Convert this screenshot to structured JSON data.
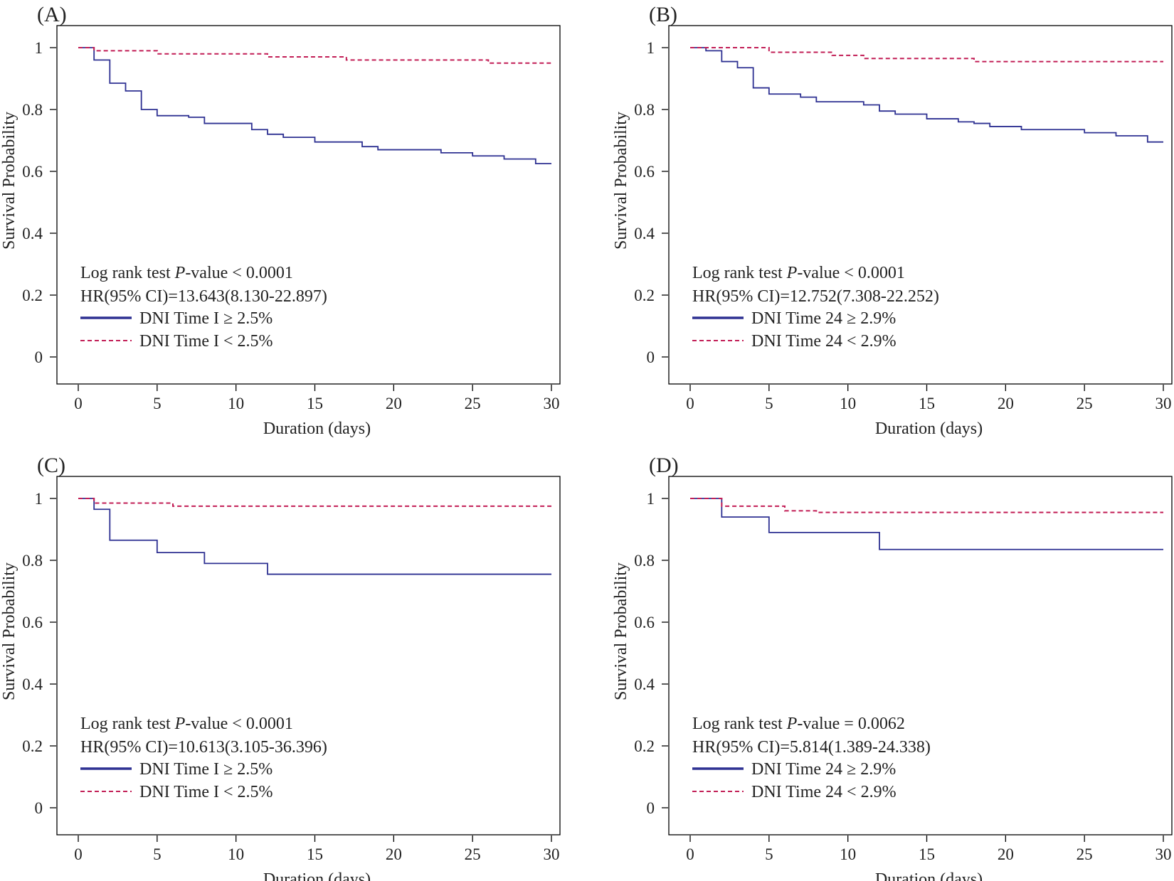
{
  "chart_data": [
    {
      "type": "line",
      "panel_label": "(A)",
      "title": "",
      "xlabel": "Duration (days)",
      "ylabel": "Survival Probability",
      "xlim": [
        0,
        30
      ],
      "ylim": [
        0,
        1
      ],
      "x_ticks": [
        "0",
        "5",
        "10",
        "15",
        "20",
        "25",
        "30"
      ],
      "y_ticks": [
        "0",
        "0.2",
        "0.4",
        "0.6",
        "0.8",
        "1"
      ],
      "grid": false,
      "stat_test": "Log rank test P-value < 0.0001",
      "stat_test_parts": [
        "Log rank test ",
        "P",
        "-value < 0.0001"
      ],
      "hazard_ratio": "HR(95% CI)=13.643(8.130-22.897)",
      "series": [
        {
          "name": "DNI Time I ≥ 2.5%",
          "color": "#2e3192",
          "dash": "solid",
          "x": [
            0,
            1,
            2,
            3,
            4,
            5,
            7,
            8,
            10,
            11,
            12,
            13,
            15,
            18,
            19,
            23,
            25,
            27,
            29,
            30
          ],
          "y": [
            1.0,
            0.96,
            0.885,
            0.86,
            0.8,
            0.78,
            0.775,
            0.755,
            0.755,
            0.735,
            0.72,
            0.71,
            0.695,
            0.68,
            0.67,
            0.66,
            0.65,
            0.64,
            0.625,
            0.625
          ]
        },
        {
          "name": "DNI Time I < 2.5%",
          "color": "#c21e56",
          "dash": "dashed",
          "x": [
            0,
            1,
            5,
            12,
            17,
            26,
            30
          ],
          "y": [
            1.0,
            0.99,
            0.98,
            0.97,
            0.96,
            0.95,
            0.95
          ]
        }
      ]
    },
    {
      "type": "line",
      "panel_label": "(B)",
      "title": "",
      "xlabel": "Duration (days)",
      "ylabel": "Survival Probability",
      "xlim": [
        0,
        30
      ],
      "ylim": [
        0,
        1
      ],
      "x_ticks": [
        "0",
        "5",
        "10",
        "15",
        "20",
        "25",
        "30"
      ],
      "y_ticks": [
        "0",
        "0.2",
        "0.4",
        "0.6",
        "0.8",
        "1"
      ],
      "grid": false,
      "stat_test": "Log rank test P-value < 0.0001",
      "stat_test_parts": [
        "Log rank test ",
        "P",
        "-value < 0.0001"
      ],
      "hazard_ratio": "HR(95% CI)=12.752(7.308-22.252)",
      "series": [
        {
          "name": "DNI Time 24 ≥ 2.9%",
          "color": "#2e3192",
          "dash": "solid",
          "x": [
            0,
            1,
            2,
            3,
            4,
            5,
            7,
            8,
            11,
            12,
            13,
            15,
            17,
            18,
            19,
            21,
            25,
            27,
            29,
            30
          ],
          "y": [
            1.0,
            0.99,
            0.955,
            0.935,
            0.87,
            0.85,
            0.84,
            0.825,
            0.815,
            0.795,
            0.785,
            0.77,
            0.76,
            0.755,
            0.745,
            0.735,
            0.725,
            0.715,
            0.695,
            0.695
          ]
        },
        {
          "name": "DNI Time 24 < 2.9%",
          "color": "#c21e56",
          "dash": "dashed",
          "x": [
            0,
            5,
            9,
            11,
            18,
            30
          ],
          "y": [
            1.0,
            0.985,
            0.975,
            0.965,
            0.955,
            0.955
          ]
        }
      ]
    },
    {
      "type": "line",
      "panel_label": "(C)",
      "title": "",
      "xlabel": "Duration (days)",
      "ylabel": "Survival Probability",
      "xlim": [
        0,
        30
      ],
      "ylim": [
        0,
        1
      ],
      "x_ticks": [
        "0",
        "5",
        "10",
        "15",
        "20",
        "25",
        "30"
      ],
      "y_ticks": [
        "0",
        "0.2",
        "0.4",
        "0.6",
        "0.8",
        "1"
      ],
      "grid": false,
      "stat_test": "Log rank test P-value < 0.0001",
      "stat_test_parts": [
        "Log rank test ",
        "P",
        "-value < 0.0001"
      ],
      "hazard_ratio": "HR(95% CI)=10.613(3.105-36.396)",
      "series": [
        {
          "name": "DNI Time I ≥ 2.5%",
          "color": "#2e3192",
          "dash": "solid",
          "x": [
            0,
            1,
            2,
            5,
            8,
            12,
            30
          ],
          "y": [
            1.0,
            0.965,
            0.865,
            0.825,
            0.79,
            0.755,
            0.755
          ]
        },
        {
          "name": "DNI Time I < 2.5%",
          "color": "#c21e56",
          "dash": "dashed",
          "x": [
            0,
            1,
            6,
            30
          ],
          "y": [
            1.0,
            0.985,
            0.975,
            0.975
          ]
        }
      ]
    },
    {
      "type": "line",
      "panel_label": "(D)",
      "title": "",
      "xlabel": "Duration (days)",
      "ylabel": "Survival Probability",
      "xlim": [
        0,
        30
      ],
      "ylim": [
        0,
        1
      ],
      "x_ticks": [
        "0",
        "5",
        "10",
        "15",
        "20",
        "25",
        "30"
      ],
      "y_ticks": [
        "0",
        "0.2",
        "0.4",
        "0.6",
        "0.8",
        "1"
      ],
      "grid": false,
      "stat_test": "Log rank test P-value = 0.0062",
      "stat_test_parts": [
        "Log rank test ",
        "P",
        "-value = 0.0062"
      ],
      "hazard_ratio": "HR(95% CI)=5.814(1.389-24.338)",
      "series": [
        {
          "name": "DNI Time 24 ≥ 2.9%",
          "color": "#2e3192",
          "dash": "solid",
          "x": [
            0,
            2,
            5,
            12,
            30
          ],
          "y": [
            1.0,
            0.94,
            0.89,
            0.835,
            0.835
          ]
        },
        {
          "name": "DNI Time 24 < 2.9%",
          "color": "#c21e56",
          "dash": "dashed",
          "x": [
            0,
            2,
            6,
            8,
            30
          ],
          "y": [
            1.0,
            0.975,
            0.96,
            0.955,
            0.955
          ]
        }
      ]
    }
  ]
}
